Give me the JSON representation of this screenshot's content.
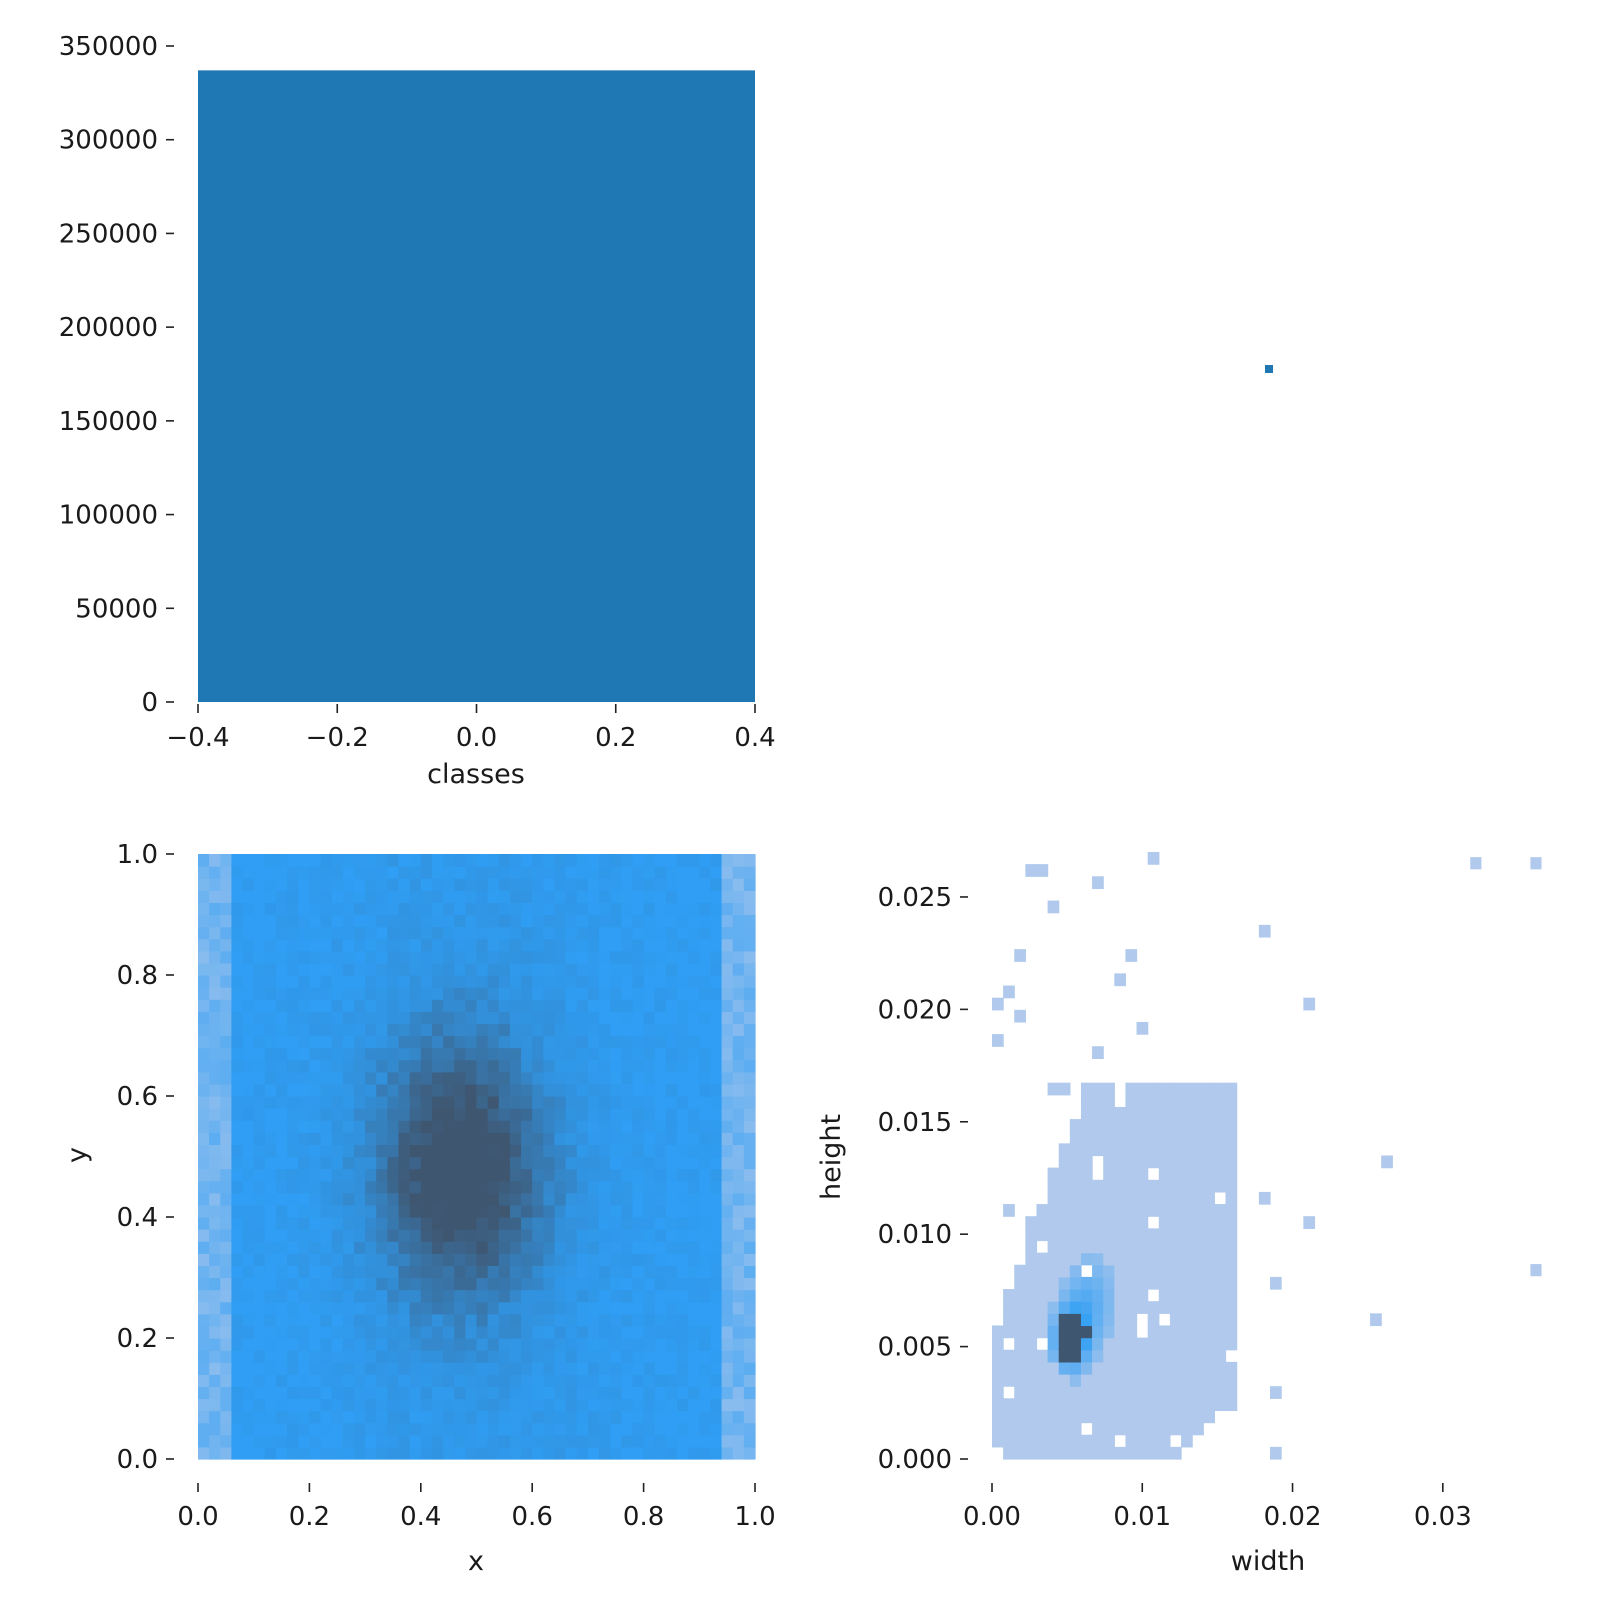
{
  "colors": {
    "bar": "#1f77b4",
    "point": "#1f77b4",
    "hist_light": "#b0c9ec",
    "hist_mid": "#2f9ef4",
    "hist_dark": "#3f5670"
  },
  "chart_data": [
    {
      "name": "classes-histogram",
      "type": "bar",
      "xlabel": "classes",
      "ylabel": "",
      "xlim": [
        -0.4,
        0.4
      ],
      "ylim": [
        0,
        350000
      ],
      "xticks": [
        "−0.4",
        "−0.2",
        "0.0",
        "0.2",
        "0.4"
      ],
      "yticks": [
        "0",
        "50000",
        "100000",
        "150000",
        "200000",
        "250000",
        "300000",
        "350000"
      ],
      "bars": [
        {
          "x0": -0.4,
          "x1": 0.4,
          "value": 337000
        }
      ]
    },
    {
      "name": "classes-scatter",
      "type": "scatter",
      "xlabel": "",
      "ylabel": "",
      "axes_visible": false,
      "points": [
        {
          "x": 0.0,
          "y": 0.0
        }
      ]
    },
    {
      "name": "xy-heatmap",
      "type": "heatmap",
      "xlabel": "x",
      "ylabel": "y",
      "xlim": [
        0,
        1
      ],
      "ylim": [
        0,
        1
      ],
      "xticks": [
        "0.0",
        "0.2",
        "0.4",
        "0.6",
        "0.8",
        "1.0"
      ],
      "yticks": [
        "0.0",
        "0.2",
        "0.4",
        "0.6",
        "0.8",
        "1.0"
      ],
      "bins": [
        50,
        50
      ],
      "density": "peak near x=0.47, y=0.48; densest region spans x 0.35–0.60, y 0.35–0.68; lightest at left and right edges"
    },
    {
      "name": "width-height-heatmap",
      "type": "heatmap",
      "xlabel": "width",
      "ylabel": "height",
      "xlim": [
        0,
        0.037
      ],
      "ylim": [
        0,
        0.027
      ],
      "xticks": [
        "0.00",
        "0.01",
        "0.02",
        "0.03"
      ],
      "yticks": [
        "0.000",
        "0.005",
        "0.010",
        "0.015",
        "0.020",
        "0.025"
      ],
      "bins": [
        50,
        50
      ],
      "density": "peak near width=0.005, height=0.005; bulk of data width 0–0.016, height 0–0.016; sparse outliers up to width 0.036, height 0.027"
    }
  ]
}
